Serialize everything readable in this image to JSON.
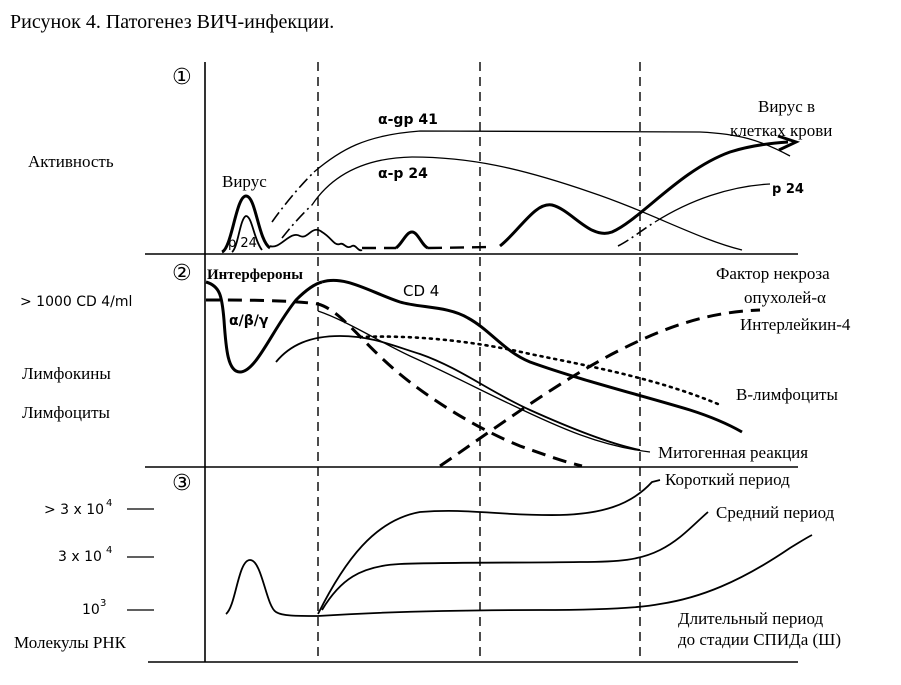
{
  "figure_title": "Рисунок 4. Патогенез ВИЧ-инфекции.",
  "panels": {
    "p1": {
      "number": "①"
    },
    "p2": {
      "number": "②"
    },
    "p3": {
      "number": "③"
    }
  },
  "left_labels": {
    "activity": "Активность",
    "cd4_count": "> 1000 CD 4/ml",
    "lymphokines": "Лимфокины",
    "lymphocytes": "Лимфоциты",
    "rna_high_base": "> 3 x 10",
    "rna_high_exp": "4",
    "rna_mid_base": "3 x 10",
    "rna_mid_exp": "4",
    "rna_low_base": "10",
    "rna_low_exp": "3",
    "rna_molecules": "Молекулы РНК"
  },
  "panel1": {
    "virus": "Вирус",
    "p24_peak": "p 24",
    "a_gp41": "α-gp 41",
    "a_p24": "α-p 24",
    "virus_in_blood_1": "Вирус в",
    "virus_in_blood_2": "клетках крови",
    "p24_late": "p 24"
  },
  "panel2": {
    "interferons": "Интерфероны",
    "abg": "α/β/γ",
    "cd4": "CD 4",
    "tnf_1": "Фактор некроза",
    "tnf_2": "опухолей-α",
    "il4": "Интерлейкин-4",
    "b_lymph": "B-лимфоциты",
    "mitogen": "Митогенная реакция"
  },
  "panel3": {
    "short": "Короткий период",
    "medium": "Средний период",
    "long_1": "Длительный период",
    "long_2": "до стадии СПИДа (Ш)"
  }
}
